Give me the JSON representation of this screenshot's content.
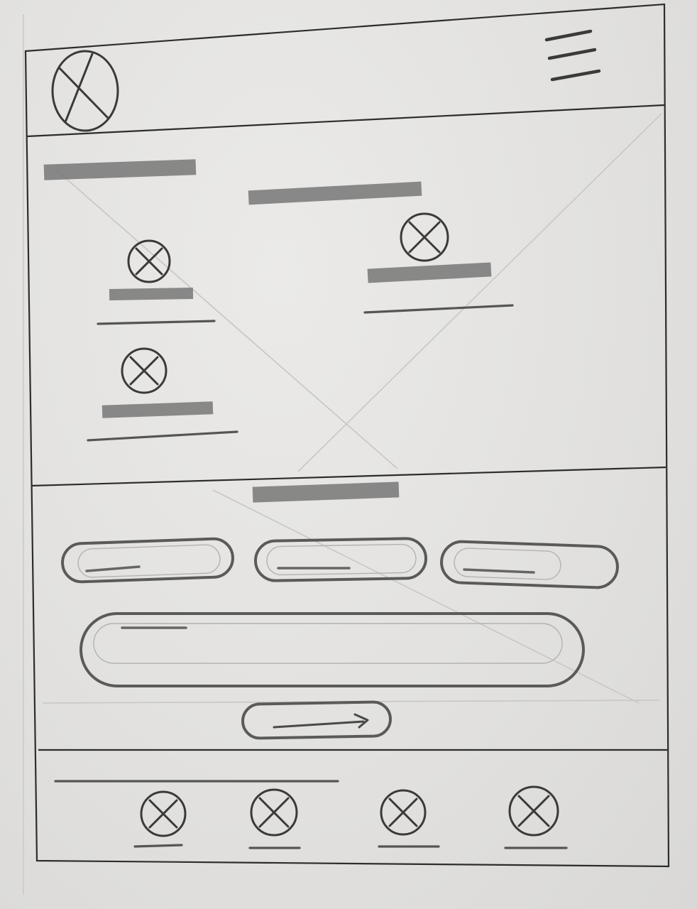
{
  "sketch": {
    "header": {
      "logo_icon": "image-placeholder-icon",
      "menu_icon": "hamburger-menu-icon"
    },
    "hero": {
      "feature_count": 3,
      "feature_icon": "image-placeholder-icon"
    },
    "form": {
      "short_field_count": 3,
      "wide_field_count": 1,
      "submit_icon": "arrow-right-icon"
    },
    "footer": {
      "icon_link_count": 4,
      "link_icon": "image-placeholder-icon"
    },
    "colors": {
      "paper": "#e3e2e0",
      "pencil": "#3a3a3a",
      "shading": "#777777"
    }
  }
}
